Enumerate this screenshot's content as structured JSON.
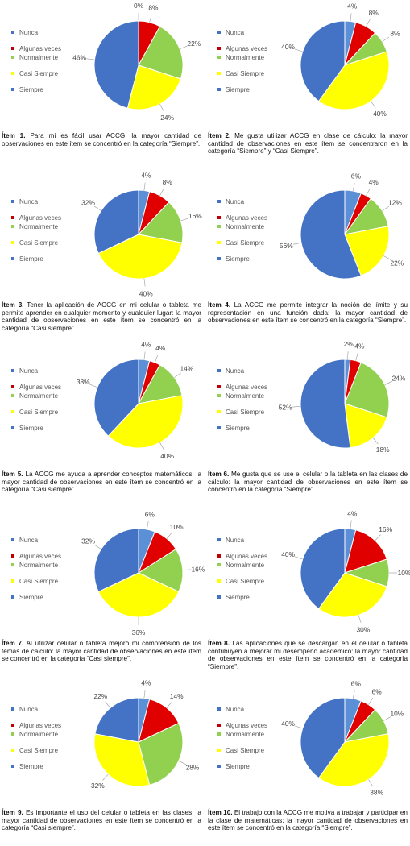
{
  "legend": {
    "items": [
      {
        "label": "Nunca",
        "color": "#4472c4"
      },
      {
        "label": "Algunas veces",
        "color": "#c00000"
      },
      {
        "label": "Normalmente",
        "color": "#92d050"
      },
      {
        "label": "Casi Siempre",
        "color": "#ffff00"
      },
      {
        "label": "Siempre",
        "color": "#4472c4"
      }
    ]
  },
  "chart_data": [
    {
      "type": "pie",
      "item_label": "Ítem 1.",
      "caption": "Para mí es fácil usar ACCG: la mayor cantidad de observaciones en este ítem se concentró en la categoría “Siempre”.",
      "categories": [
        "Nunca",
        "Algunas veces",
        "Normalmente",
        "Casi Siempre",
        "Siempre"
      ],
      "values": [
        0,
        8,
        22,
        24,
        46
      ]
    },
    {
      "type": "pie",
      "item_label": "Ítem 2.",
      "caption": "Me gusta utilizar ACCG en clase de cálculo: la mayor cantidad de observaciones en este ítem se concentraron en la categoría “Siempre” y “Casi Siempre”.",
      "categories": [
        "Nunca",
        "Algunas veces",
        "Normalmente",
        "Casi Siempre",
        "Siempre"
      ],
      "values": [
        4,
        8,
        8,
        40,
        40
      ]
    },
    {
      "type": "pie",
      "item_label": "Ítem 3.",
      "caption": "Tener la aplicación de ACCG en mi celular o tableta me permite aprender en cualquier momento y cualquier lugar: la mayor cantidad de observaciones en este ítem se concentró en la categoría “Casi siempre”.",
      "categories": [
        "Nunca",
        "Algunas veces",
        "Normalmente",
        "Casi Siempre",
        "Siempre"
      ],
      "values": [
        4,
        8,
        16,
        40,
        32
      ]
    },
    {
      "type": "pie",
      "item_label": "Ítem 4.",
      "caption": "La ACCG me permite integrar la noción de límite y su representación en una función dada: la mayor cantidad de observaciones en este ítem se concentró en la categoría “Siempre”.",
      "categories": [
        "Nunca",
        "Algunas veces",
        "Normalmente",
        "Casi Siempre",
        "Siempre"
      ],
      "values": [
        6,
        4,
        12,
        22,
        56
      ]
    },
    {
      "type": "pie",
      "item_label": "Ítem 5.",
      "caption": "La ACCG me ayuda a aprender conceptos matemáticos: la mayor cantidad de observaciones en este ítem se concentró en la categoría “Casi siempre”.",
      "categories": [
        "Nunca",
        "Algunas veces",
        "Normalmente",
        "Casi Siempre",
        "Siempre"
      ],
      "values": [
        4,
        4,
        14,
        40,
        38
      ]
    },
    {
      "type": "pie",
      "item_label": "Ítem 6.",
      "caption": "Me gusta que se use el celular o la tableta en las clases de cálculo: la mayor cantidad de observaciones en este ítem se concentró en la categoría “Siempre”.",
      "categories": [
        "Nunca",
        "Algunas veces",
        "Normalmente",
        "Casi Siempre",
        "Siempre"
      ],
      "values": [
        2,
        4,
        24,
        18,
        52
      ]
    },
    {
      "type": "pie",
      "item_label": "Ítem 7.",
      "caption": "Al utilizar celular o tableta mejoró mi comprensión de los temas de cálculo: la mayor cantidad de observaciones en este ítem se concentró en la categoría “Casi siempre”.",
      "categories": [
        "Nunca",
        "Algunas veces",
        "Normalmente",
        "Casi Siempre",
        "Siempre"
      ],
      "values": [
        6,
        10,
        16,
        36,
        32
      ]
    },
    {
      "type": "pie",
      "item_label": "Ítem 8.",
      "caption": "Las aplicaciones que se descargan en el celular o tableta contribuyen a mejorar mi desempeño académico: la mayor cantidad de observaciones en este ítem se concentró en la categoría “Siempre”.",
      "categories": [
        "Nunca",
        "Algunas veces",
        "Normalmente",
        "Casi Siempre",
        "Siempre"
      ],
      "values": [
        4,
        16,
        10,
        30,
        40
      ]
    },
    {
      "type": "pie",
      "item_label": "Ítem 9.",
      "caption": "Es importante el uso del celular o tableta en las clases: la mayor cantidad de observaciones en este ítem se concentró en la categoría “Casi siempre”.",
      "categories": [
        "Nunca",
        "Algunas veces",
        "Normalmente",
        "Casi Siempre",
        "Siempre"
      ],
      "values": [
        4,
        14,
        28,
        32,
        22
      ]
    },
    {
      "type": "pie",
      "item_label": "Ítem 10.",
      "caption": "El trabajo con la ACCG me motiva a trabajar y participar en la clase de matemáticas: la mayor cantidad de observaciones en este ítem se concentró en la categoría “Siempre”.",
      "categories": [
        "Nunca",
        "Algunas veces",
        "Normalmente",
        "Casi Siempre",
        "Siempre"
      ],
      "values": [
        6,
        6,
        10,
        38,
        40
      ]
    }
  ]
}
